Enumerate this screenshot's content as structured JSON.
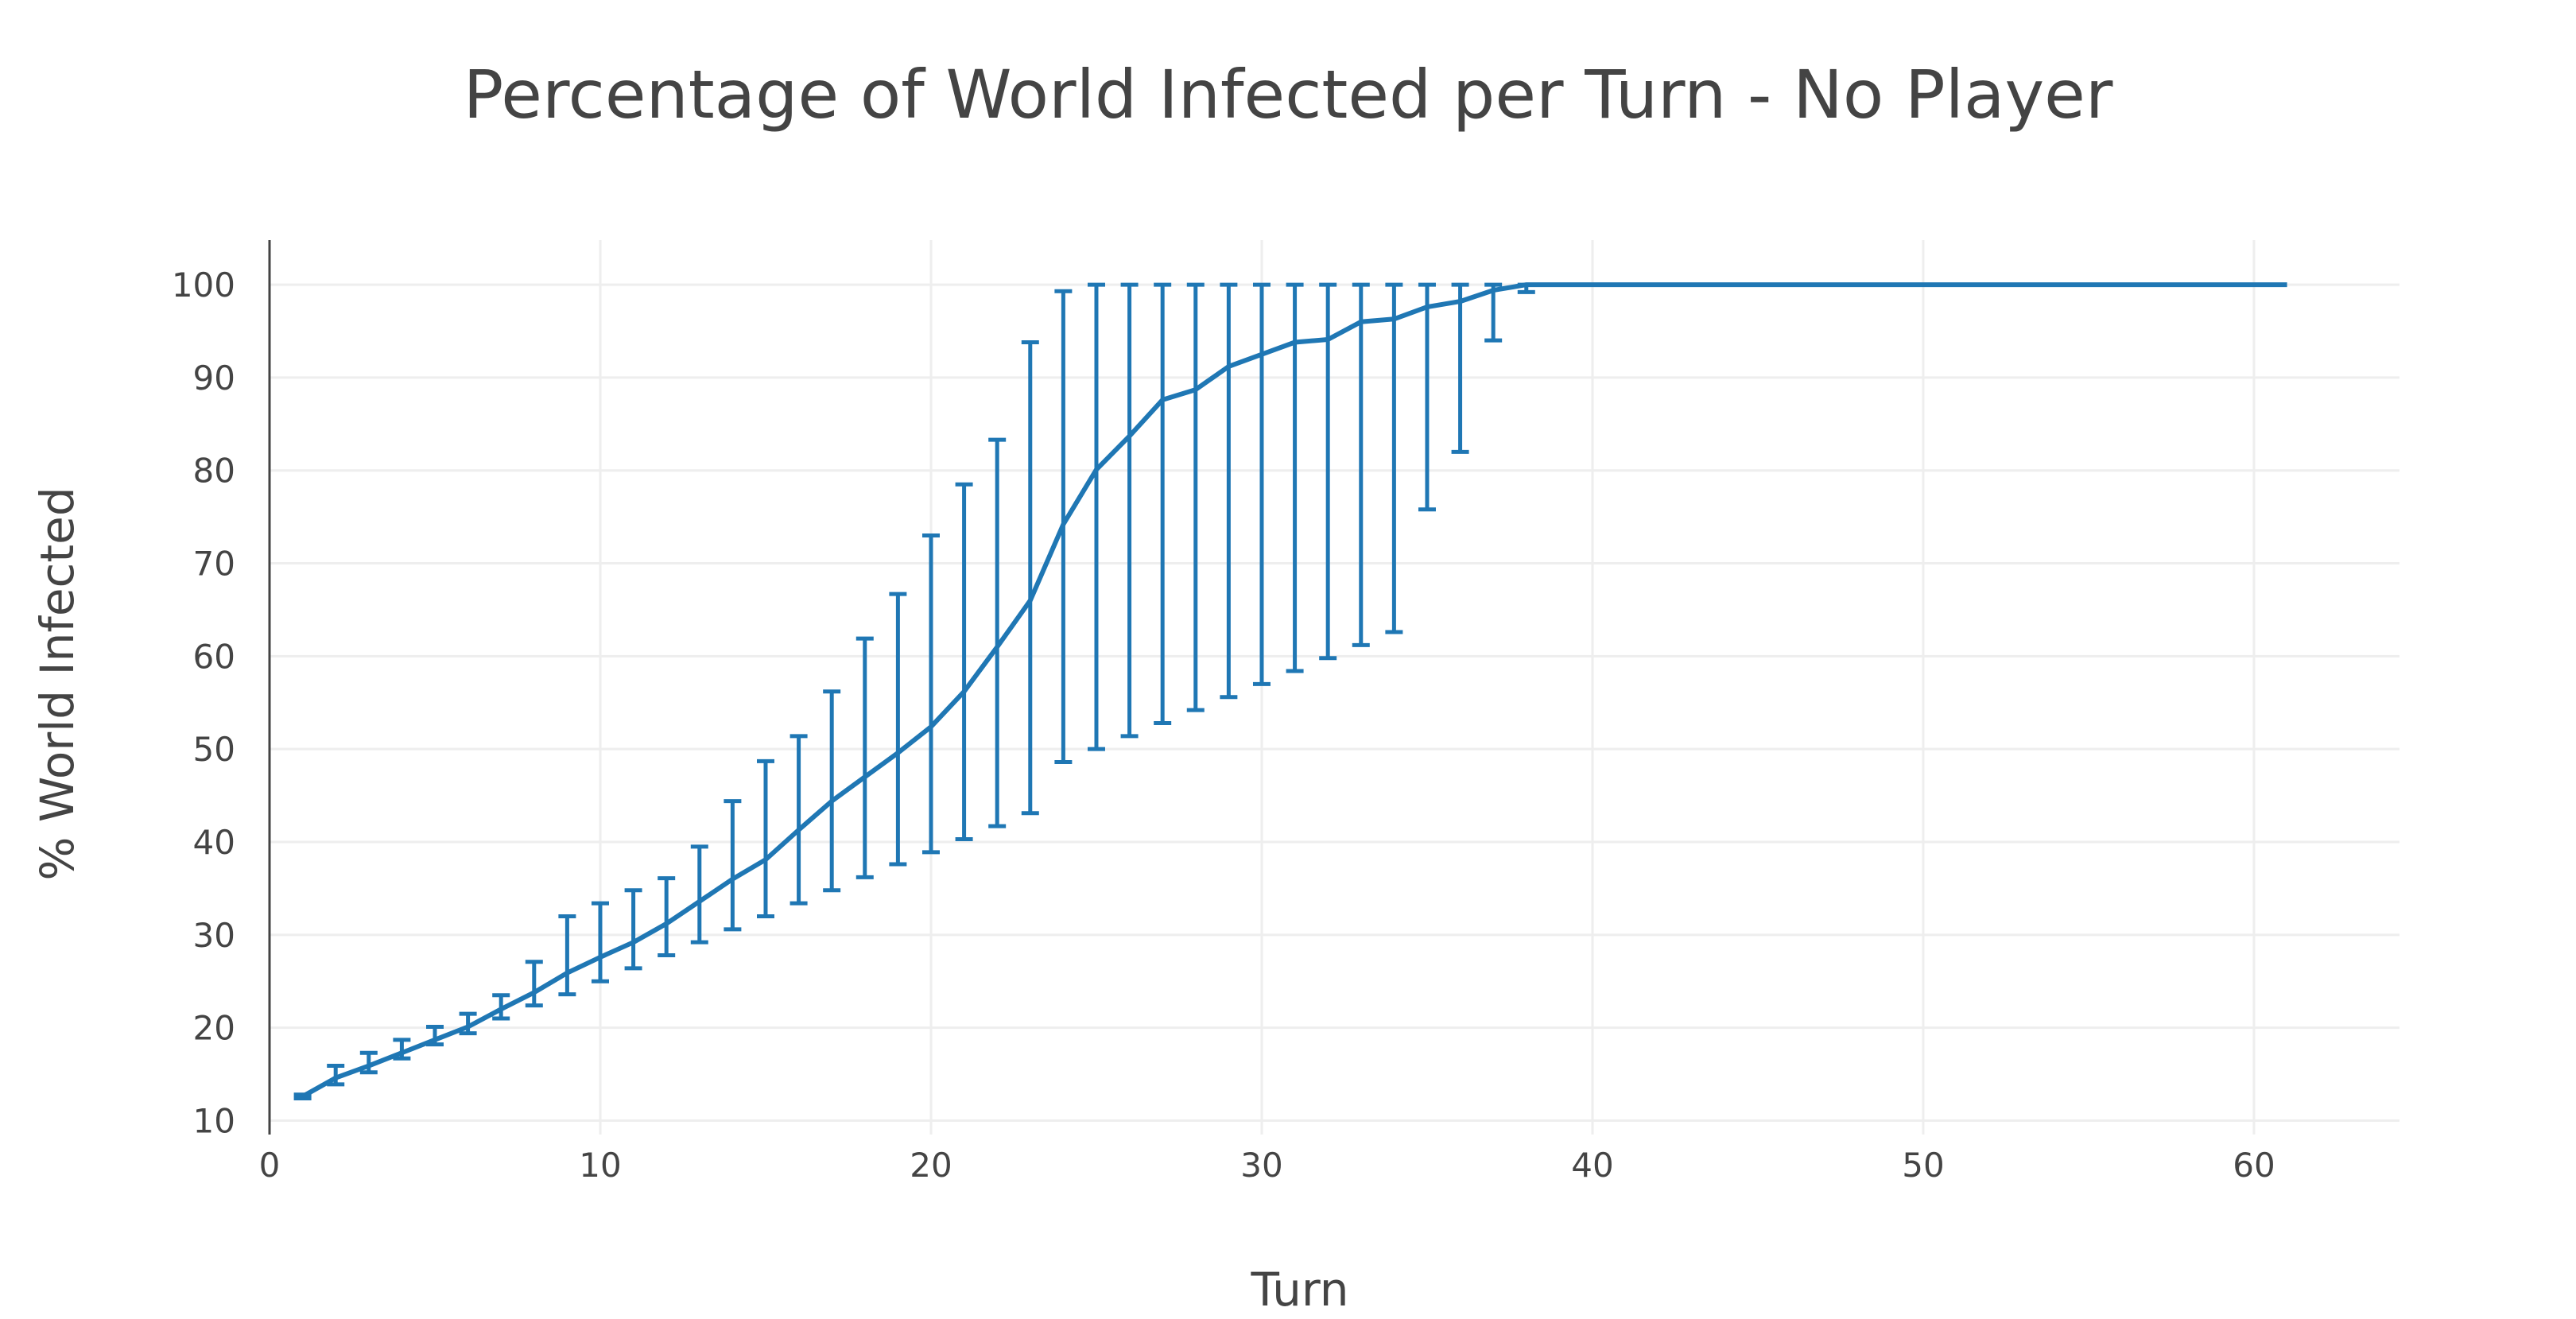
{
  "chart_data": {
    "type": "line",
    "title": "Percentage of World Infected per Turn - No Player",
    "xlabel": "Turn",
    "ylabel": "% World Infected",
    "xlim": [
      0,
      64.4
    ],
    "ylim": [
      8.5,
      104.8
    ],
    "x_ticks": [
      0,
      10,
      20,
      30,
      40,
      50,
      60
    ],
    "y_ticks": [
      10,
      20,
      30,
      40,
      50,
      60,
      70,
      80,
      90,
      100
    ],
    "grid": true,
    "legend": "none",
    "line_color": "#1f77b4",
    "series": [
      {
        "x": [
          1,
          2,
          3,
          4,
          5,
          6,
          7,
          8,
          9,
          10,
          11,
          12,
          13,
          14,
          15,
          16,
          17,
          18,
          19,
          20,
          21,
          22,
          23,
          24,
          25,
          26,
          27,
          28,
          29,
          30,
          31,
          32,
          33,
          34,
          35,
          36,
          37,
          38,
          39,
          40,
          41,
          42,
          43,
          44,
          45,
          46,
          47,
          48,
          49,
          50,
          51,
          52,
          53,
          54,
          55,
          56,
          57,
          58,
          59,
          60,
          61
        ],
        "y": [
          12.6,
          14.6,
          15.9,
          17.3,
          18.7,
          20.1,
          22.0,
          23.8,
          25.9,
          27.6,
          29.2,
          31.2,
          33.6,
          36.0,
          38.1,
          41.3,
          44.4,
          47.0,
          49.6,
          52.4,
          56.2,
          61.0,
          66.0,
          74.2,
          80.1,
          83.7,
          87.6,
          88.7,
          91.2,
          92.5,
          93.8,
          94.1,
          96.0,
          96.3,
          97.6,
          98.2,
          99.4,
          100,
          100,
          100,
          100,
          100,
          100,
          100,
          100,
          100,
          100,
          100,
          100,
          100,
          100,
          100,
          100,
          100,
          100,
          100,
          100,
          100,
          100,
          100,
          100
        ],
        "error_low": [
          12.4,
          13.9,
          15.2,
          16.7,
          18.2,
          19.4,
          21.0,
          22.4,
          23.6,
          25.0,
          26.4,
          27.8,
          29.2,
          30.6,
          32.0,
          33.4,
          34.8,
          36.2,
          37.6,
          38.9,
          40.3,
          41.7,
          43.1,
          48.6,
          50.0,
          51.4,
          52.8,
          54.2,
          55.6,
          57.0,
          58.4,
          59.8,
          61.2,
          62.6,
          75.8,
          82.0,
          94.0,
          99.2
        ],
        "error_high": [
          12.8,
          15.9,
          17.3,
          18.7,
          20.1,
          21.5,
          23.5,
          27.1,
          32.0,
          33.4,
          34.8,
          36.1,
          39.5,
          44.4,
          48.7,
          51.4,
          56.2,
          61.9,
          66.7,
          73.0,
          78.5,
          83.3,
          93.8,
          99.3,
          100,
          100,
          100,
          100,
          100,
          100,
          100,
          100,
          100,
          100,
          100,
          100,
          100,
          100
        ]
      }
    ]
  }
}
